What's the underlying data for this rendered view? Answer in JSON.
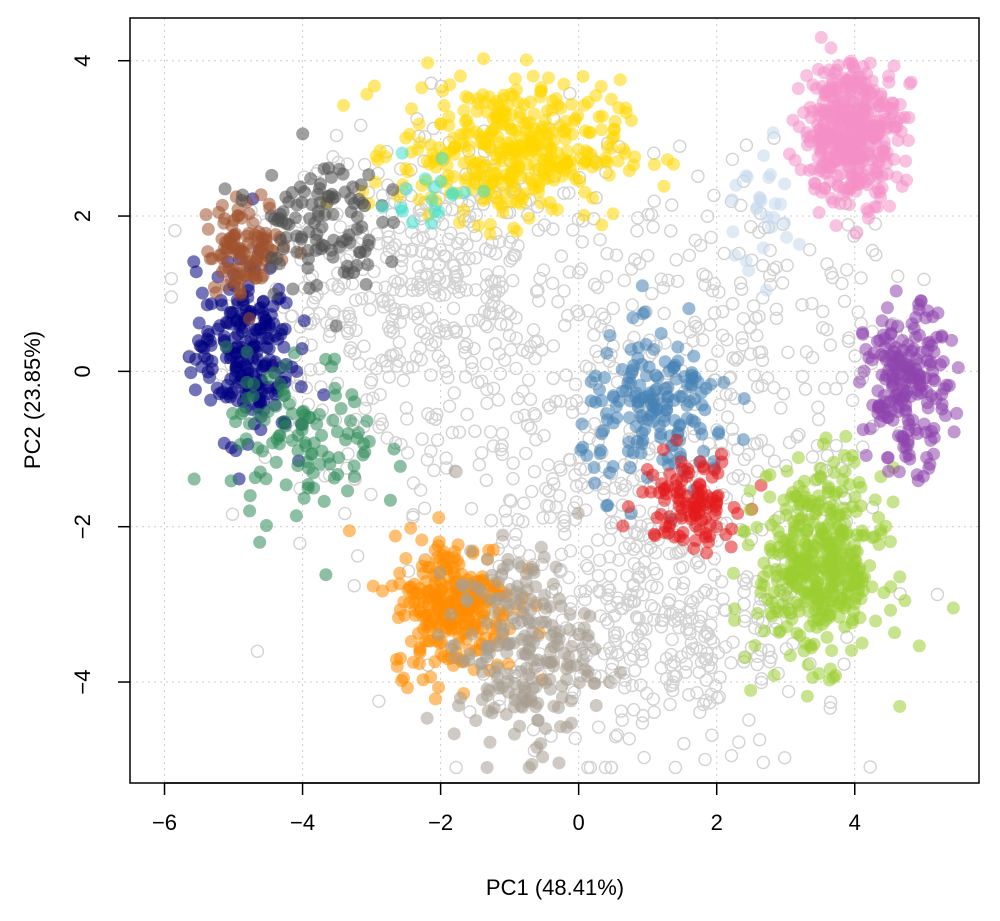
{
  "chart_data": {
    "type": "scatter",
    "title": "",
    "xlabel": "PC1 (48.41%)",
    "ylabel": "PC2 (23.85%)",
    "xlim": [
      -6.5,
      5.8
    ],
    "ylim": [
      -5.3,
      4.55
    ],
    "xticks": [
      -6,
      -4,
      -2,
      0,
      2,
      4
    ],
    "yticks": [
      -4,
      -2,
      0,
      2,
      4
    ],
    "xtick_labels": [
      "−6",
      "−4",
      "−2",
      "0",
      "2",
      "4"
    ],
    "ytick_labels": [
      "−4",
      "−2",
      "0",
      "2",
      "4"
    ],
    "grid": true,
    "legend": "none",
    "unassigned_style": {
      "color": "#d3d3d3",
      "marker": "open-circle"
    },
    "clusters": [
      {
        "color": "#ffd700",
        "center": [
          -1.0,
          2.85
        ],
        "spread": [
          0.8,
          0.45
        ],
        "n": 380,
        "marker": "filled-circle"
      },
      {
        "color": "#ff8c00",
        "center": [
          -1.8,
          -3.0
        ],
        "spread": [
          0.45,
          0.45
        ],
        "n": 280,
        "marker": "filled-circle"
      },
      {
        "color": "#a89f91",
        "center": [
          -0.8,
          -3.6
        ],
        "spread": [
          0.5,
          0.65
        ],
        "n": 220,
        "marker": "filled-circle"
      },
      {
        "color": "#000080",
        "center": [
          -4.85,
          0.25
        ],
        "spread": [
          0.35,
          0.55
        ],
        "n": 230,
        "marker": "filled-circle"
      },
      {
        "color": "#a0522d",
        "center": [
          -4.8,
          1.6
        ],
        "spread": [
          0.3,
          0.3
        ],
        "n": 110,
        "marker": "filled-circle"
      },
      {
        "color": "#505050",
        "center": [
          -3.8,
          1.95
        ],
        "spread": [
          0.45,
          0.45
        ],
        "n": 110,
        "marker": "filled-circle"
      },
      {
        "color": "#2e8b57",
        "center": [
          -4.0,
          -0.9
        ],
        "spread": [
          0.55,
          0.55
        ],
        "n": 110,
        "marker": "filled-circle"
      },
      {
        "color": "#40e0d0",
        "center": [
          -2.2,
          2.25
        ],
        "spread": [
          0.35,
          0.3
        ],
        "n": 18,
        "marker": "filled-circle"
      },
      {
        "color": "#4682b4",
        "center": [
          1.15,
          -0.55
        ],
        "spread": [
          0.55,
          0.5
        ],
        "n": 170,
        "marker": "filled-circle"
      },
      {
        "color": "#e31a1c",
        "center": [
          1.6,
          -1.65
        ],
        "spread": [
          0.35,
          0.3
        ],
        "n": 110,
        "marker": "filled-circle"
      },
      {
        "color": "#9acd32",
        "center": [
          3.5,
          -2.5
        ],
        "spread": [
          0.45,
          0.6
        ],
        "n": 420,
        "marker": "filled-circle"
      },
      {
        "color": "#8e44ad",
        "center": [
          4.75,
          -0.2
        ],
        "spread": [
          0.3,
          0.5
        ],
        "n": 200,
        "marker": "filled-circle"
      },
      {
        "color": "#f48fc7",
        "center": [
          3.95,
          3.1
        ],
        "spread": [
          0.35,
          0.45
        ],
        "n": 420,
        "marker": "filled-circle"
      },
      {
        "color": "#c6d9ec",
        "center": [
          2.6,
          2.1
        ],
        "spread": [
          0.3,
          0.45
        ],
        "n": 28,
        "marker": "filled-circle"
      }
    ],
    "unassigned_n": 1300
  }
}
